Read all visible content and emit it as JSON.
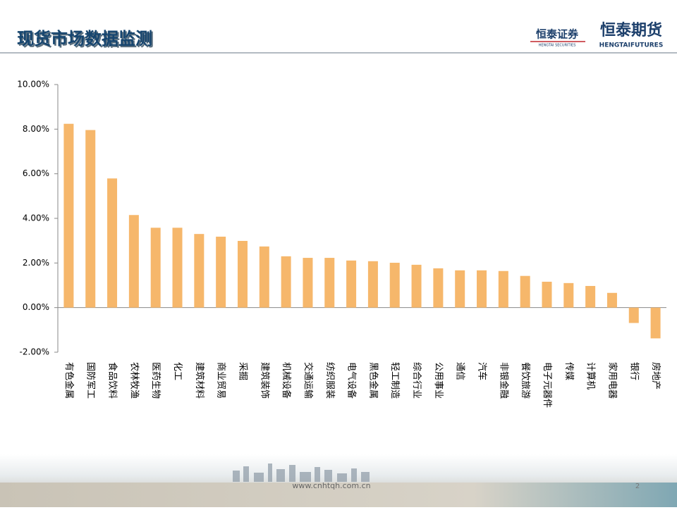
{
  "header": {
    "title": "现货市场数据监测",
    "logo1": "恒泰证券",
    "logo1_sub": "HENGTAI SECURITIES",
    "logo2": "恒泰期货",
    "logo2_sub": "HENGTAIFUTURES"
  },
  "footer": {
    "url": "www.cnhtqh.com.cn",
    "page": "2"
  },
  "chart_data": {
    "type": "bar",
    "color": "#f6b76b",
    "categories": [
      "有色金属",
      "国防军工",
      "食品饮料",
      "农林牧渔",
      "医药生物",
      "化工",
      "建筑材料",
      "商业贸易",
      "采掘",
      "建筑装饰",
      "机械设备",
      "交通运输",
      "纺织服装",
      "电气设备",
      "黑色金属",
      "轻工制造",
      "综合行业",
      "公用事业",
      "通信",
      "汽车",
      "非银金融",
      "餐饮旅游",
      "电子元器件",
      "传媒",
      "计算机",
      "家用电器",
      "银行",
      "房地产"
    ],
    "values": [
      8.24,
      7.96,
      5.79,
      4.15,
      3.58,
      3.58,
      3.3,
      3.18,
      2.99,
      2.74,
      2.3,
      2.23,
      2.23,
      2.11,
      2.08,
      2.01,
      1.92,
      1.76,
      1.67,
      1.67,
      1.64,
      1.42,
      1.16,
      1.1,
      0.97,
      0.66,
      -0.69,
      -1.38
    ],
    "ylim": [
      -2,
      10
    ],
    "yticks": [
      {
        "value": -2,
        "label": "-2.00%"
      },
      {
        "value": 0,
        "label": "0.00%"
      },
      {
        "value": 2,
        "label": "2.00%"
      },
      {
        "value": 4,
        "label": "4.00%"
      },
      {
        "value": 6,
        "label": "6.00%"
      },
      {
        "value": 8,
        "label": "8.00%"
      },
      {
        "value": 10,
        "label": "10.00%"
      }
    ]
  }
}
